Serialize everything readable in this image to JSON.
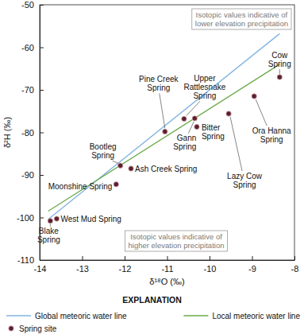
{
  "chart_data": {
    "type": "scatter",
    "x_label": "δ¹⁸O (‰)",
    "y_label": "δ²H (‰)",
    "xlim": [
      -14,
      -8
    ],
    "ylim": [
      -110,
      -50
    ],
    "xticks": [
      -14,
      -13,
      -12,
      -11,
      -10,
      -9,
      -8
    ],
    "yticks": [
      -110,
      -100,
      -90,
      -80,
      -70,
      -60,
      -50
    ],
    "grid": false,
    "legend_title": "EXPLANATION",
    "annotations": [
      "Isotopic values indicative of lower elevation precipitation",
      "Isotopic values indicative of higher elevation precipitation"
    ],
    "series": [
      {
        "name": "Global meteoric water line",
        "type": "line",
        "color": "#82b4e0",
        "line_style": "solid",
        "x": [
          -13.8,
          -8.35
        ],
        "values": [
          -100.4,
          -56.8
        ]
      },
      {
        "name": "Local meteoric water line",
        "type": "line",
        "color": "#6aaa48",
        "line_style": "solid",
        "x": [
          -13.8,
          -8.35
        ],
        "values": [
          -98.5,
          -64
        ]
      },
      {
        "name": "Spring site",
        "type": "scatter",
        "color": "#5c1f2e",
        "marker": "circle",
        "x": [
          -13.75,
          -13.6,
          -12.2,
          -12.1,
          -11.85,
          -11.05,
          -10.6,
          -10.35,
          -10.3,
          -9.55,
          -8.95,
          -8.35
        ],
        "values": [
          -100.8,
          -100.3,
          -92.2,
          -87.8,
          -88.5,
          -79.8,
          -76.8,
          -76.7,
          -78.7,
          -75.6,
          -71.5,
          -67
        ],
        "labels": [
          "Blake Spring",
          "West Mud Spring",
          "Moonshine Spring",
          "Bootleg Spring",
          "Ash Creek Spring",
          "Pine Creek Spring",
          "Upper Rattlesnake Spring",
          "Gann Spring",
          "Bitter Spring",
          "Lazy Cow Spring",
          "Ora Hanna Spring",
          "Cow Spring"
        ]
      }
    ]
  }
}
